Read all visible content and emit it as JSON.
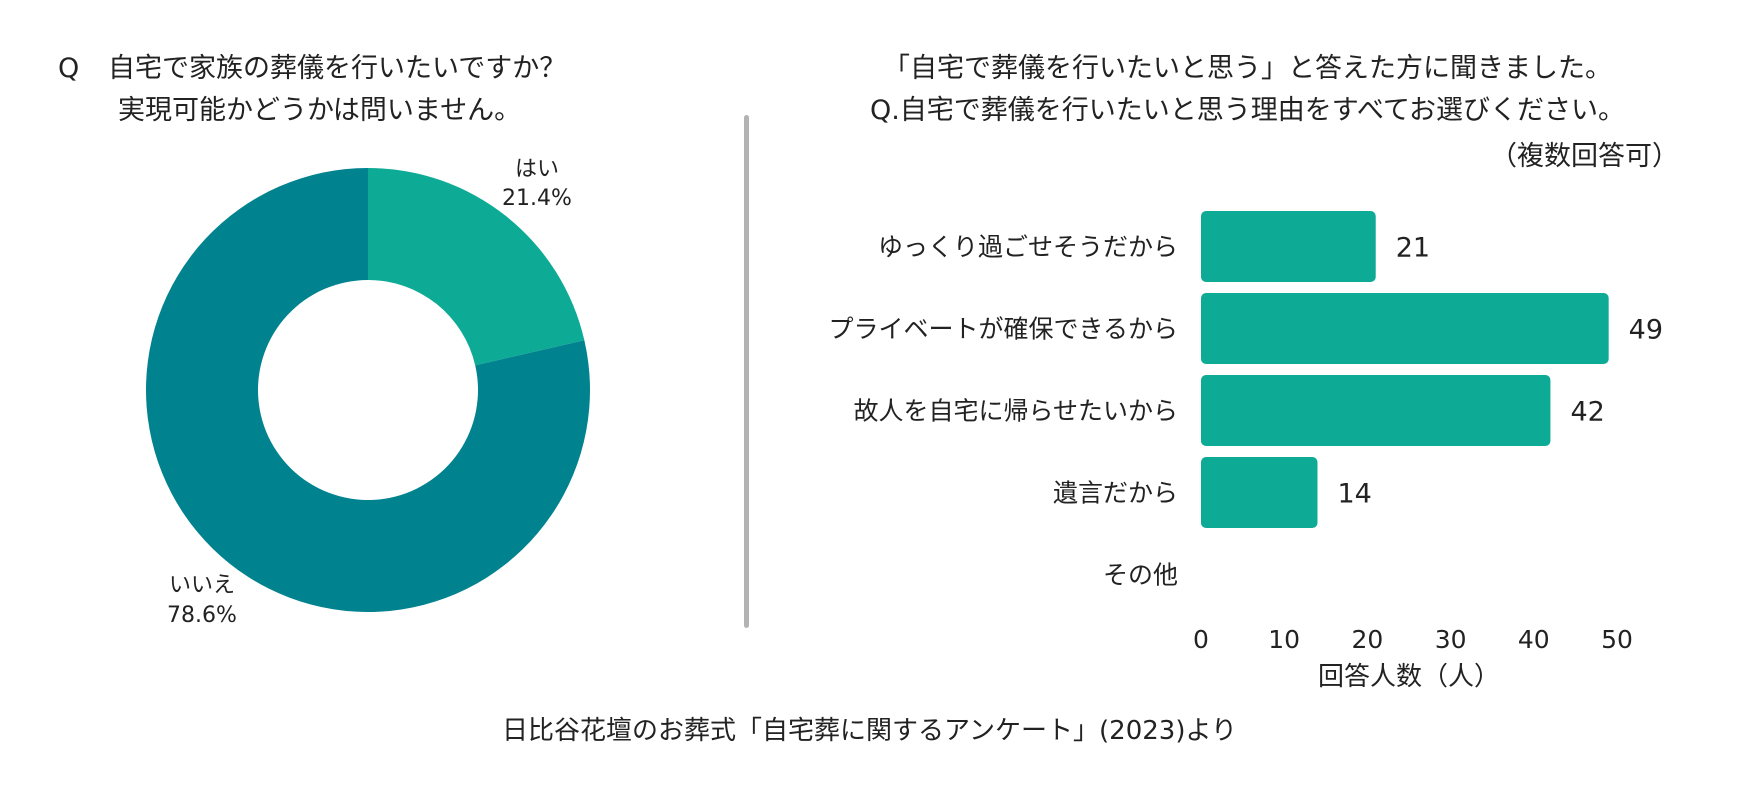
{
  "left_question": {
    "q_mark": "Q",
    "line1": "自宅で家族の葬儀を行いたいですか？",
    "line2": "実現可能かどうかは問いません。"
  },
  "right_question": {
    "line1": "「自宅で葬儀を行いたいと思う」と答えた方に聞きました。",
    "line2": "Q.自宅で葬儀を行いたいと思う理由をすべてお選びください。",
    "note": "（複数回答可）"
  },
  "footer": "日比谷花壇のお葬式「自宅葬に関するアンケート」(2023)より",
  "colors": {
    "yes": "#0dab95",
    "no": "#00838f",
    "bar": "#0dab95",
    "divider": "#b3b3b3"
  },
  "chart_data": [
    {
      "type": "pie",
      "style": "donut",
      "labels": [
        "はい",
        "いいえ"
      ],
      "values": [
        21.4,
        78.6
      ],
      "value_labels": [
        "21.4%",
        "78.6%"
      ]
    },
    {
      "type": "bar",
      "orientation": "horizontal",
      "categories": [
        "ゆっくり過ごせそうだから",
        "プライベートが確保できるから",
        "故人を自宅に帰らせたいから",
        "遺言だから",
        "その他"
      ],
      "values": [
        21,
        49,
        42,
        14,
        0
      ],
      "value_labels": [
        "21",
        "49",
        "42",
        "14",
        ""
      ],
      "xlabel": "回答人数（人）",
      "xticks": [
        "0",
        "10",
        "20",
        "30",
        "40",
        "50"
      ],
      "xlim": [
        0,
        50
      ]
    }
  ]
}
